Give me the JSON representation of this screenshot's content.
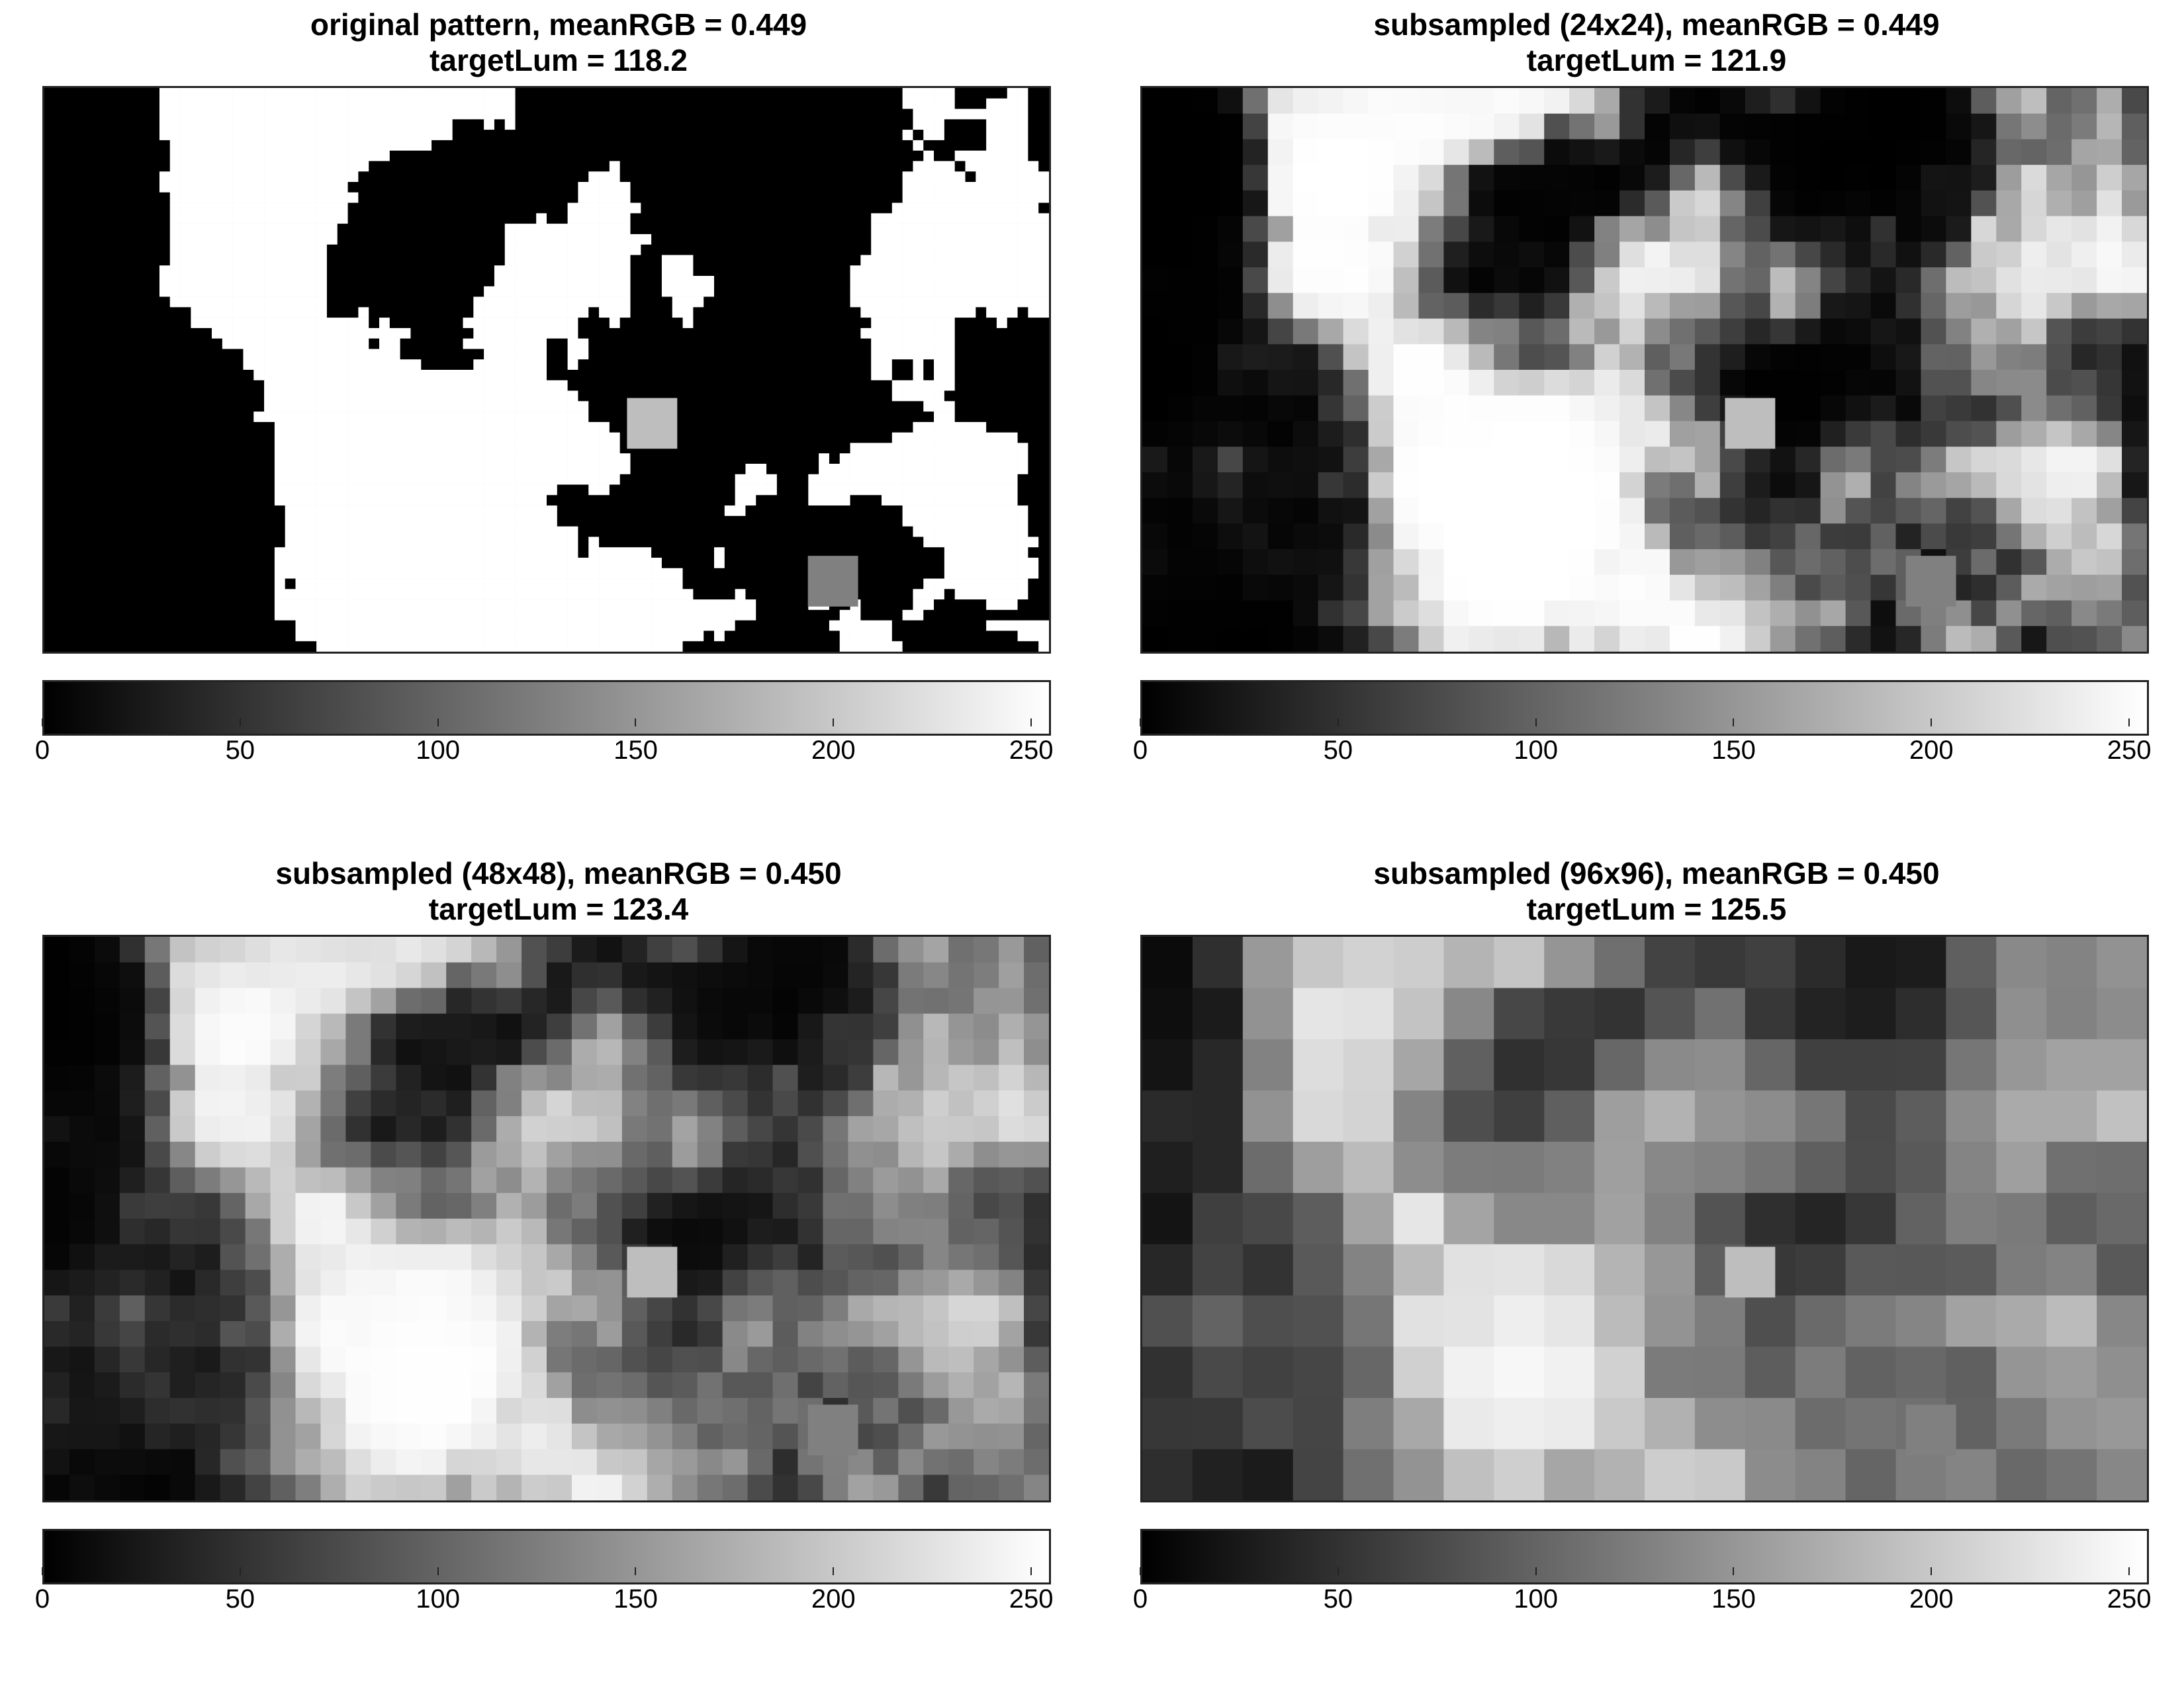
{
  "panels": [
    {
      "id": "p1",
      "title_line1": "original pattern, meanRGB = 0.449",
      "title_line2": "targetLum = 118.2",
      "grid": {
        "cols": 96,
        "rows": 54,
        "seed": 1
      },
      "target_patches": [
        {
          "label": "target-light",
          "gray": 190
        },
        {
          "label": "target-mid",
          "gray": 128
        }
      ]
    },
    {
      "id": "p2",
      "title_line1": "subsampled (24x24), meanRGB = 0.449",
      "title_line2": "targetLum = 121.9",
      "grid": {
        "cols": 40,
        "rows": 22,
        "seed": 1
      },
      "target_patches": [
        {
          "label": "target-light",
          "gray": 190
        },
        {
          "label": "target-mid",
          "gray": 128
        }
      ]
    },
    {
      "id": "p3",
      "title_line1": "subsampled (48x48), meanRGB = 0.450",
      "title_line2": "targetLum = 123.4",
      "grid": {
        "cols": 40,
        "rows": 22,
        "seed": 1
      },
      "target_patches": [
        {
          "label": "target-light",
          "gray": 190
        },
        {
          "label": "target-mid",
          "gray": 128
        }
      ]
    },
    {
      "id": "p4",
      "title_line1": "subsampled (96x96), meanRGB = 0.450",
      "title_line2": "targetLum = 125.5",
      "grid": {
        "cols": 20,
        "rows": 11,
        "seed": 1
      },
      "target_patches": [
        {
          "label": "target-light",
          "gray": 190
        },
        {
          "label": "target-mid",
          "gray": 128
        }
      ]
    }
  ],
  "chart_data": {
    "type": "heatmap",
    "colormap": "gray",
    "colorbar": {
      "min": 0,
      "max": 255,
      "ticks": [
        0,
        50,
        100,
        150,
        200,
        250
      ],
      "tick_labels": [
        "0",
        "50",
        "100",
        "150",
        "200",
        "250"
      ]
    },
    "panels": [
      {
        "title": "original pattern, meanRGB = 0.449",
        "subtitle": "targetLum = 118.2",
        "meanRGB": 0.449,
        "targetLum": 118.2
      },
      {
        "title": "subsampled (24x24), meanRGB = 0.449",
        "subtitle": "targetLum = 121.9",
        "meanRGB": 0.449,
        "targetLum": 121.9
      },
      {
        "title": "subsampled (48x48), meanRGB = 0.450",
        "subtitle": "targetLum = 123.4",
        "meanRGB": 0.45,
        "targetLum": 123.4
      },
      {
        "title": "subsampled (96x96), meanRGB = 0.450",
        "subtitle": "targetLum = 125.5",
        "meanRGB": 0.45,
        "targetLum": 125.5
      }
    ]
  }
}
